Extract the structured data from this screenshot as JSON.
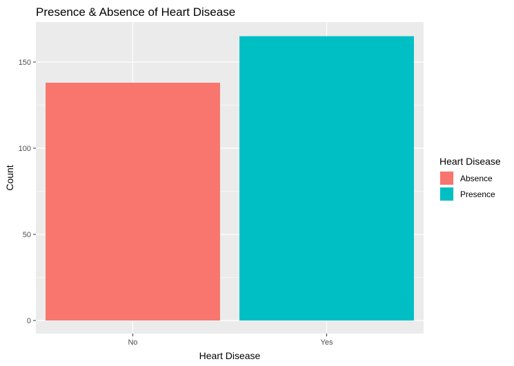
{
  "chart_data": {
    "type": "bar",
    "title": "Presence & Absence of Heart Disease",
    "xlabel": "Heart Disease",
    "ylabel": "Count",
    "categories": [
      "No",
      "Yes"
    ],
    "values": [
      138,
      165
    ],
    "fill_labels": [
      "Absence",
      "Presence"
    ],
    "colors": [
      "#F8766D",
      "#00BFC4"
    ],
    "ylim": [
      0,
      173.25
    ],
    "yticks": [
      0,
      50,
      100,
      150
    ],
    "grid": true,
    "legend": {
      "title": "Heart Disease",
      "placement": "right",
      "entries": [
        "Absence",
        "Presence"
      ]
    }
  }
}
